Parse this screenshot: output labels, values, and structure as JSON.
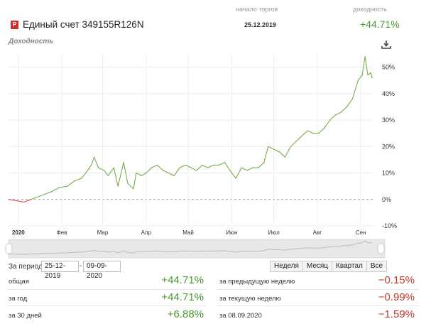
{
  "header": {
    "col_start_label": "начало торгов",
    "col_yield_label": "доходность",
    "account_badge": "P",
    "account_name": "Единый счет 349155R126N",
    "start_date": "25.12.2019",
    "yield_total": "+44.71%"
  },
  "section_title": "Доходность",
  "icons": {
    "download": "download-icon"
  },
  "colors": {
    "positive": "#4a9a2e",
    "negative": "#c0392b",
    "line_up": "#6aa53a",
    "line_down": "#e03a3a"
  },
  "chart_data": {
    "type": "line",
    "title": "",
    "ylim": [
      -10,
      55
    ],
    "y_ticks": [
      -10,
      0,
      10,
      20,
      30,
      40,
      50
    ],
    "y_tick_labels": [
      "-10%",
      "0%",
      "10%",
      "20%",
      "30%",
      "40%",
      "50%"
    ],
    "x_tick_labels": [
      "2020",
      "Фев",
      "Мар",
      "Апр",
      "Май",
      "Июн",
      "Июл",
      "Авг",
      "Сен"
    ],
    "navigator_labels": [
      "2020",
      "Фев",
      "Мар",
      "Апр",
      "Май",
      "Июн",
      "Июл",
      "Авг",
      "Сен"
    ],
    "start": "2019-12-25",
    "series": [
      {
        "name": "",
        "points": [
          [
            "2019-12-25",
            0
          ],
          [
            "2019-12-31",
            -0.5
          ],
          [
            "2020-01-05",
            -1
          ],
          [
            "2020-01-10",
            0
          ],
          [
            "2020-01-15",
            1
          ],
          [
            "2020-01-20",
            2
          ],
          [
            "2020-01-25",
            3
          ],
          [
            "2020-01-30",
            4.5
          ],
          [
            "2020-02-05",
            5
          ],
          [
            "2020-02-10",
            7
          ],
          [
            "2020-02-15",
            8
          ],
          [
            "2020-02-18",
            10
          ],
          [
            "2020-02-22",
            13
          ],
          [
            "2020-02-24",
            16
          ],
          [
            "2020-02-27",
            12
          ],
          [
            "2020-03-02",
            11
          ],
          [
            "2020-03-05",
            9
          ],
          [
            "2020-03-09",
            12
          ],
          [
            "2020-03-12",
            5
          ],
          [
            "2020-03-16",
            14
          ],
          [
            "2020-03-19",
            6
          ],
          [
            "2020-03-23",
            4
          ],
          [
            "2020-03-25",
            10
          ],
          [
            "2020-03-29",
            9
          ],
          [
            "2020-04-01",
            10
          ],
          [
            "2020-04-05",
            12
          ],
          [
            "2020-04-09",
            13
          ],
          [
            "2020-04-13",
            11
          ],
          [
            "2020-04-17",
            10
          ],
          [
            "2020-04-21",
            9
          ],
          [
            "2020-04-25",
            12
          ],
          [
            "2020-04-29",
            13
          ],
          [
            "2020-05-03",
            12
          ],
          [
            "2020-05-07",
            11
          ],
          [
            "2020-05-11",
            13
          ],
          [
            "2020-05-15",
            12
          ],
          [
            "2020-05-19",
            13
          ],
          [
            "2020-05-23",
            13
          ],
          [
            "2020-05-27",
            14
          ],
          [
            "2020-06-01",
            10
          ],
          [
            "2020-06-04",
            8
          ],
          [
            "2020-06-08",
            12
          ],
          [
            "2020-06-12",
            11
          ],
          [
            "2020-06-16",
            12
          ],
          [
            "2020-06-20",
            12
          ],
          [
            "2020-06-24",
            14
          ],
          [
            "2020-06-27",
            20
          ],
          [
            "2020-07-01",
            19
          ],
          [
            "2020-07-05",
            18
          ],
          [
            "2020-07-09",
            16
          ],
          [
            "2020-07-13",
            20
          ],
          [
            "2020-07-17",
            22
          ],
          [
            "2020-07-21",
            24
          ],
          [
            "2020-07-25",
            26
          ],
          [
            "2020-07-29",
            25
          ],
          [
            "2020-08-02",
            25
          ],
          [
            "2020-08-06",
            27
          ],
          [
            "2020-08-10",
            30
          ],
          [
            "2020-08-14",
            32
          ],
          [
            "2020-08-18",
            33
          ],
          [
            "2020-08-22",
            35
          ],
          [
            "2020-08-26",
            38
          ],
          [
            "2020-08-30",
            45
          ],
          [
            "2020-09-02",
            47
          ],
          [
            "2020-09-04",
            54
          ],
          [
            "2020-09-06",
            47
          ],
          [
            "2020-09-08",
            48
          ],
          [
            "2020-09-09",
            46
          ]
        ]
      }
    ],
    "grid": true
  },
  "controls": {
    "period_label": "За период:",
    "date_from": "25-12-2019",
    "date_to": "09-09-2020",
    "ranges": [
      "Неделя",
      "Месяц",
      "Квартал",
      "Все"
    ]
  },
  "stats": {
    "left": [
      {
        "label": "общая",
        "value": "+44.71%"
      },
      {
        "label": "за год",
        "value": "+44.71%"
      },
      {
        "label": "за 30 дней",
        "value": "+6.88%"
      }
    ],
    "right": [
      {
        "label": "за предыдущую неделю",
        "value": "−0.15%"
      },
      {
        "label": "за текущую неделю",
        "value": "−0.99%"
      },
      {
        "label": "за 08.09.2020",
        "value": "−1.59%"
      }
    ]
  }
}
